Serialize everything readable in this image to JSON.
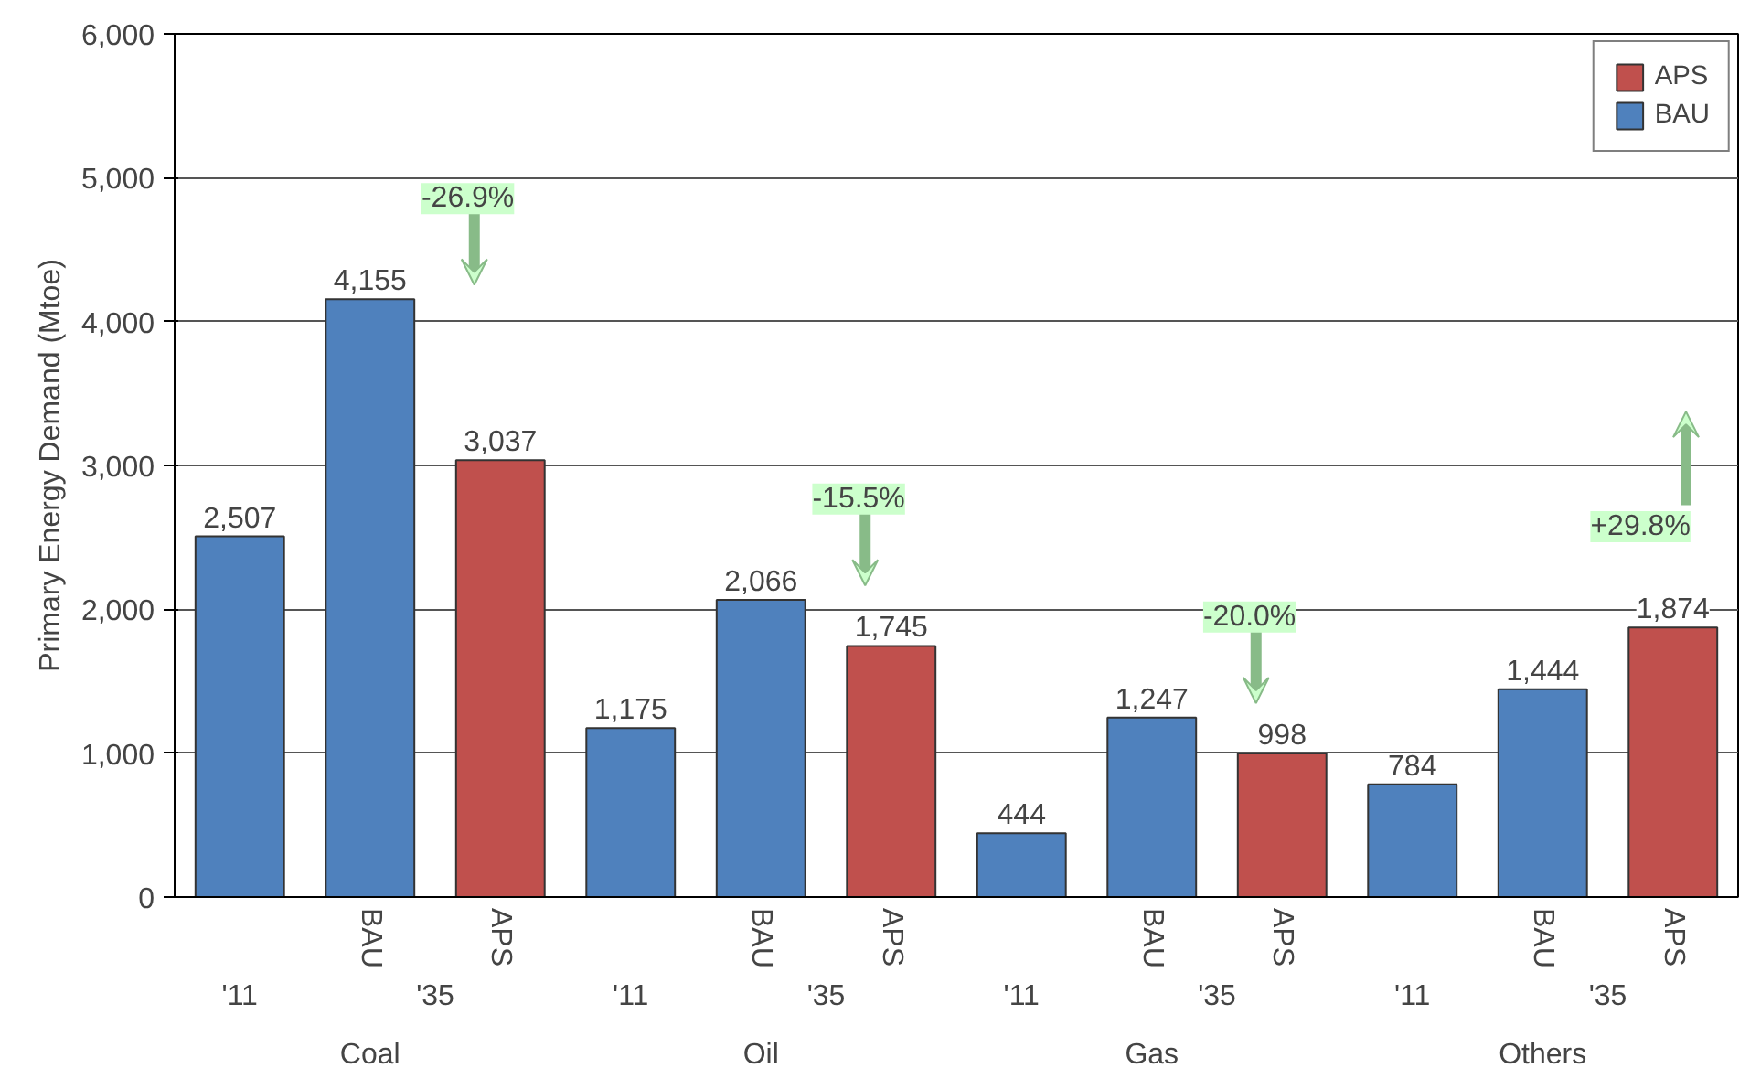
{
  "chart_data": {
    "type": "bar",
    "ylabel": "Primary Energy Demand (Mtoe)",
    "categories": [
      null,
      "BAU",
      "APS",
      null,
      "BAU",
      "APS",
      null,
      "BAU",
      "APS",
      null,
      "BAU",
      "APS"
    ],
    "series": [
      {
        "name": "APS",
        "color": "#c0504d",
        "values": [
          null,
          null,
          3037,
          null,
          null,
          1745,
          null,
          null,
          998,
          null,
          null,
          1874
        ],
        "value_labels": [
          null,
          null,
          "3,037",
          null,
          null,
          "1,745",
          null,
          null,
          "998",
          null,
          null,
          "1,874"
        ]
      },
      {
        "name": "BAU",
        "color": "#4f81bd",
        "values": [
          2507,
          4155,
          null,
          1175,
          2066,
          null,
          444,
          1247,
          null,
          784,
          1444,
          null
        ],
        "value_labels": [
          "2,507",
          "4,155",
          null,
          "1,175",
          "2,066",
          null,
          "444",
          "1,247",
          null,
          "784",
          "1,444",
          null
        ]
      }
    ],
    "ylim": [
      0,
      6000
    ],
    "yticks": [
      {
        "value": 0,
        "label": "0"
      },
      {
        "value": 1000,
        "label": "1,000"
      },
      {
        "value": 2000,
        "label": "2,000"
      },
      {
        "value": 3000,
        "label": "3,000"
      },
      {
        "value": 4000,
        "label": "4,000"
      },
      {
        "value": 5000,
        "label": "5,000"
      },
      {
        "value": 6000,
        "label": "6,000"
      }
    ],
    "grid": "y",
    "legend": "top right",
    "annotations": [
      "'11",
      "'11",
      "'11",
      "'11",
      "'35",
      "'35",
      "'35",
      "'35",
      "Coal",
      "Oil",
      "Gas",
      "Others",
      "-26.9%",
      "-15.5%",
      "-20.0%",
      "+29.8%"
    ]
  }
}
